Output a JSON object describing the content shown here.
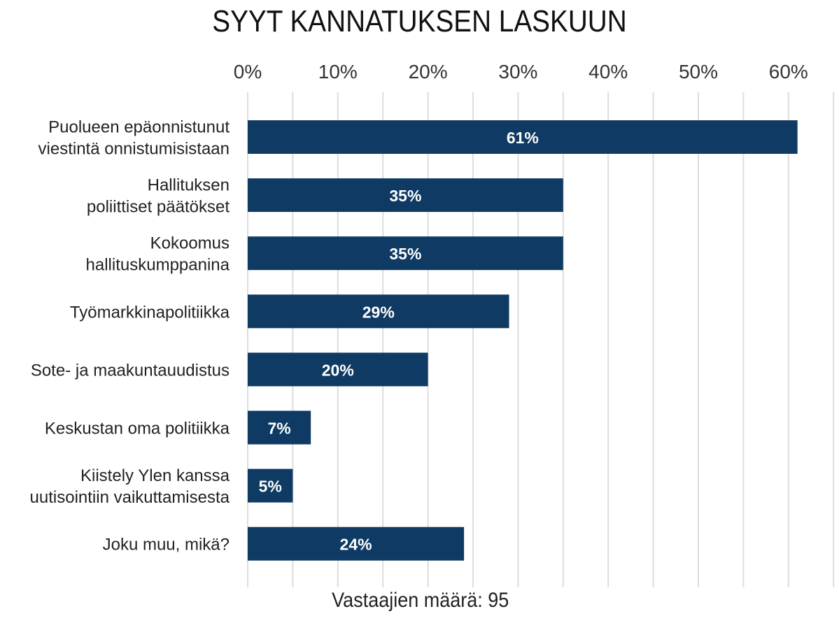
{
  "chart_data": {
    "type": "bar",
    "orientation": "horizontal",
    "title": "SYYT KANNATUKSEN LASKUUN",
    "categories": [
      [
        "Puolueen epäonnistunut",
        "viestintä onnistumisistaan"
      ],
      [
        "Hallituksen",
        "poliittiset päätökset"
      ],
      [
        "Kokoomus",
        "hallituskumppanina"
      ],
      [
        "Työmarkkinapolitiikka"
      ],
      [
        "Sote- ja maakuntauudistus"
      ],
      [
        "Keskustan oma politiikka"
      ],
      [
        "Kiistely Ylen kanssa",
        "uutisointiin vaikuttamisesta"
      ],
      [
        "Joku muu, mikä?"
      ]
    ],
    "values": [
      61,
      35,
      35,
      29,
      20,
      7,
      5,
      24
    ],
    "data_labels": [
      "61%",
      "35%",
      "35%",
      "29%",
      "20%",
      "7%",
      "5%",
      "24%"
    ],
    "x_ticks": [
      {
        "value": 0,
        "label": "0%"
      },
      {
        "value": 10,
        "label": "10%"
      },
      {
        "value": 20,
        "label": "20%"
      },
      {
        "value": 30,
        "label": "30%"
      },
      {
        "value": 40,
        "label": "40%"
      },
      {
        "value": 50,
        "label": "50%"
      },
      {
        "value": 60,
        "label": "60%"
      }
    ],
    "xlim": [
      0,
      65
    ],
    "x_axis_position": "top",
    "grid": true,
    "legend": "none",
    "bar_color": "#0e3a63",
    "label_color": "#ffffff",
    "grid_color": "#dddddd"
  },
  "footer": {
    "respondents": "Vastaajien määrä: 95"
  }
}
